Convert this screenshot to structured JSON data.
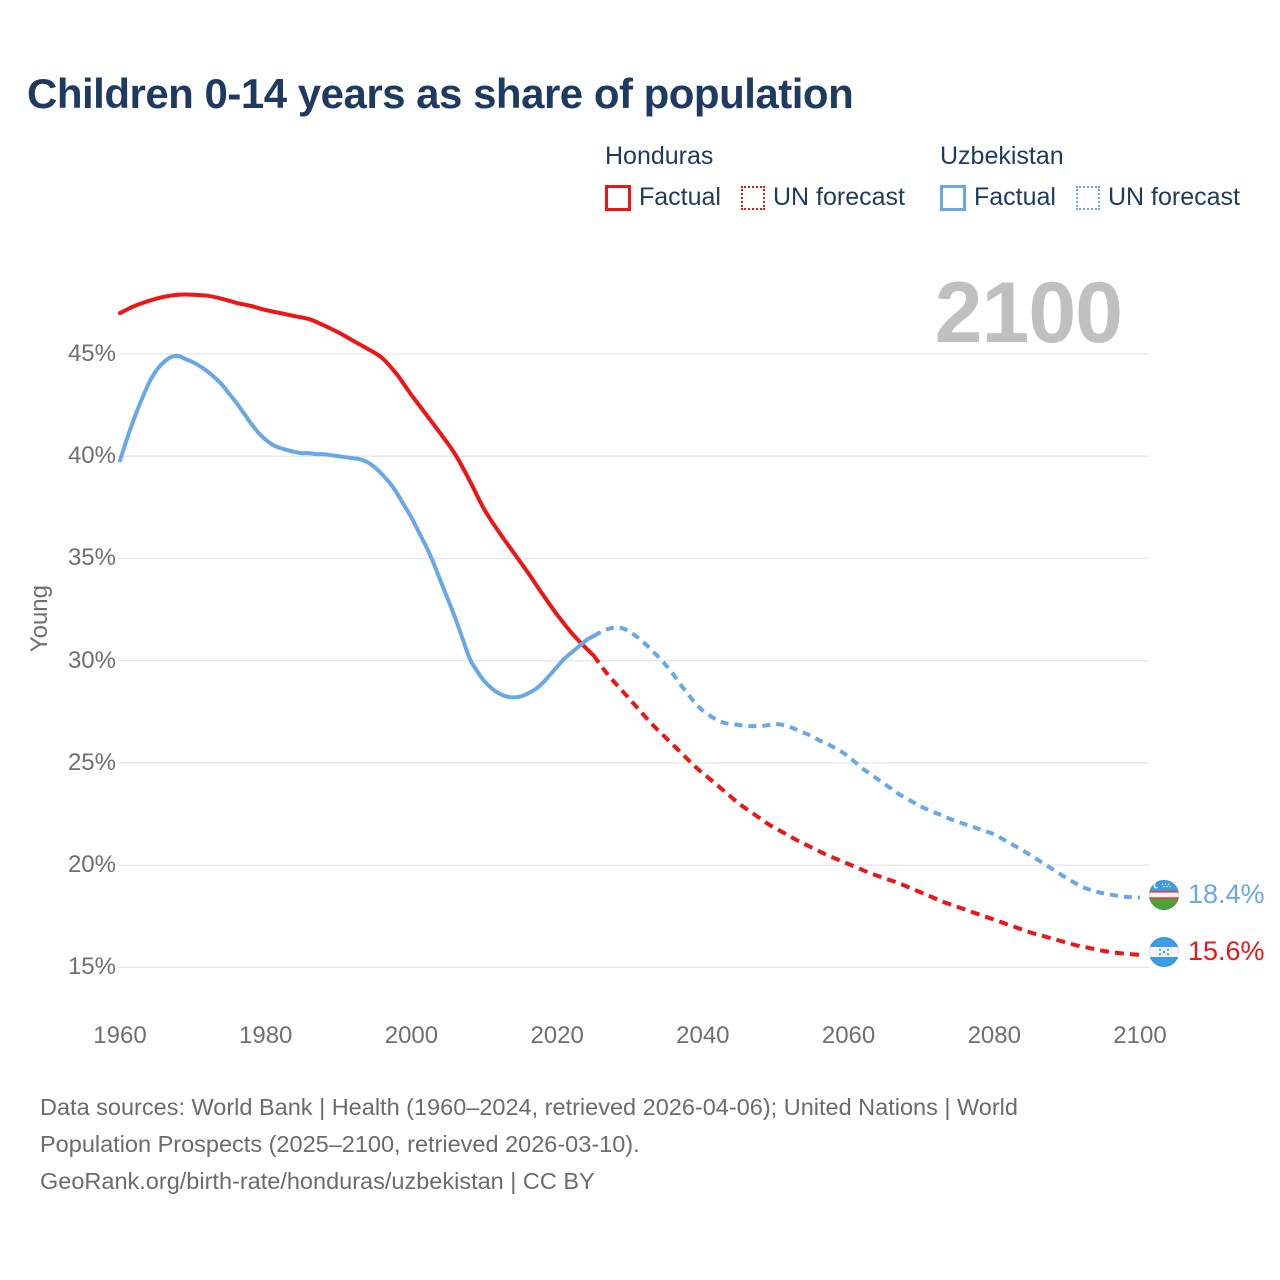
{
  "title": "Children 0-14 years as share of population",
  "legend": {
    "honduras": {
      "name": "Honduras",
      "factual_label": "Factual",
      "forecast_label": "UN forecast"
    },
    "uzbekistan": {
      "name": "Uzbekistan",
      "factual_label": "Factual",
      "forecast_label": "UN forecast"
    }
  },
  "watermark": "2100",
  "footer": {
    "line1": "Data sources: World Bank | Health (1960–2024, retrieved 2026-04-06); United Nations | World",
    "line2": "Population Prospects (2025–2100, retrieved 2026-03-10).",
    "line3": "GeoRank.org/birth-rate/honduras/uzbekistan | CC BY"
  },
  "colors": {
    "honduras": "#ee1515",
    "uzbekistan": "#68a8e6",
    "title_text": "#1e3a5f",
    "axis_text": "#6f6f6f",
    "gridline": "#e6e6e6",
    "watermark": "#c0c0c0",
    "footer_text": "#6b6b6b"
  },
  "chart_data": {
    "type": "line",
    "title": "Children 0-14 years as share of population",
    "xlabel": "",
    "ylabel": "Young",
    "grid": true,
    "legend_position": "top-right",
    "xlim": [
      1960,
      2100
    ],
    "ylim": [
      13.5,
      49
    ],
    "x_ticks": [
      1960,
      1980,
      2000,
      2020,
      2040,
      2060,
      2080,
      2100
    ],
    "y_ticks": [
      {
        "v": 15,
        "label": "15%"
      },
      {
        "v": 20,
        "label": "20%"
      },
      {
        "v": 25,
        "label": "25%"
      },
      {
        "v": 30,
        "label": "30%"
      },
      {
        "v": 35,
        "label": "35%"
      },
      {
        "v": 40,
        "label": "40%"
      },
      {
        "v": 45,
        "label": "45%"
      }
    ],
    "series": [
      {
        "name": "Honduras Factual",
        "color": "#ee1515",
        "style": "solid",
        "points": [
          [
            1960,
            47.0
          ],
          [
            1962,
            47.35
          ],
          [
            1964,
            47.6
          ],
          [
            1966,
            47.8
          ],
          [
            1968,
            47.9
          ],
          [
            1970,
            47.9
          ],
          [
            1972,
            47.85
          ],
          [
            1974,
            47.7
          ],
          [
            1976,
            47.5
          ],
          [
            1978,
            47.35
          ],
          [
            1980,
            47.15
          ],
          [
            1982,
            47.0
          ],
          [
            1984,
            46.85
          ],
          [
            1986,
            46.7
          ],
          [
            1988,
            46.4
          ],
          [
            1990,
            46.05
          ],
          [
            1992,
            45.65
          ],
          [
            1994,
            45.25
          ],
          [
            1996,
            44.8
          ],
          [
            1998,
            44.0
          ],
          [
            2000,
            43.0
          ],
          [
            2002,
            42.05
          ],
          [
            2004,
            41.1
          ],
          [
            2006,
            40.1
          ],
          [
            2008,
            38.8
          ],
          [
            2010,
            37.4
          ],
          [
            2012,
            36.3
          ],
          [
            2014,
            35.3
          ],
          [
            2016,
            34.3
          ],
          [
            2018,
            33.25
          ],
          [
            2020,
            32.25
          ],
          [
            2022,
            31.35
          ],
          [
            2024,
            30.6
          ],
          [
            2025,
            30.25
          ]
        ]
      },
      {
        "name": "Honduras UN forecast",
        "color": "#ee1515",
        "style": "dashed",
        "dash": "9 6",
        "points": [
          [
            2025,
            30.25
          ],
          [
            2027,
            29.3
          ],
          [
            2029,
            28.5
          ],
          [
            2031,
            27.7
          ],
          [
            2033,
            26.9
          ],
          [
            2035,
            26.2
          ],
          [
            2037,
            25.5
          ],
          [
            2039,
            24.8
          ],
          [
            2041,
            24.2
          ],
          [
            2043,
            23.6
          ],
          [
            2045,
            23.0
          ],
          [
            2047,
            22.5
          ],
          [
            2049,
            22.0
          ],
          [
            2051,
            21.6
          ],
          [
            2053,
            21.2
          ],
          [
            2055,
            20.85
          ],
          [
            2057,
            20.5
          ],
          [
            2059,
            20.2
          ],
          [
            2061,
            19.9
          ],
          [
            2063,
            19.6
          ],
          [
            2065,
            19.35
          ],
          [
            2067,
            19.1
          ],
          [
            2069,
            18.8
          ],
          [
            2071,
            18.5
          ],
          [
            2073,
            18.2
          ],
          [
            2075,
            17.95
          ],
          [
            2077,
            17.7
          ],
          [
            2079,
            17.45
          ],
          [
            2081,
            17.2
          ],
          [
            2083,
            16.95
          ],
          [
            2085,
            16.7
          ],
          [
            2087,
            16.5
          ],
          [
            2089,
            16.3
          ],
          [
            2091,
            16.1
          ],
          [
            2093,
            15.95
          ],
          [
            2095,
            15.8
          ],
          [
            2097,
            15.7
          ],
          [
            2100,
            15.6
          ]
        ]
      },
      {
        "name": "Uzbekistan Factual",
        "color": "#68a8e6",
        "style": "solid",
        "points": [
          [
            1960,
            39.8
          ],
          [
            1961,
            40.9
          ],
          [
            1962,
            41.9
          ],
          [
            1963,
            42.8
          ],
          [
            1964,
            43.6
          ],
          [
            1965,
            44.2
          ],
          [
            1966,
            44.6
          ],
          [
            1967,
            44.85
          ],
          [
            1968,
            44.9
          ],
          [
            1969,
            44.75
          ],
          [
            1970,
            44.6
          ],
          [
            1971,
            44.4
          ],
          [
            1972,
            44.15
          ],
          [
            1973,
            43.85
          ],
          [
            1974,
            43.5
          ],
          [
            1975,
            43.05
          ],
          [
            1976,
            42.6
          ],
          [
            1977,
            42.1
          ],
          [
            1978,
            41.6
          ],
          [
            1979,
            41.15
          ],
          [
            1980,
            40.8
          ],
          [
            1981,
            40.55
          ],
          [
            1982,
            40.4
          ],
          [
            1983,
            40.3
          ],
          [
            1984,
            40.2
          ],
          [
            1985,
            40.15
          ],
          [
            1986,
            40.15
          ],
          [
            1987,
            40.1
          ],
          [
            1988,
            40.1
          ],
          [
            1989,
            40.05
          ],
          [
            1990,
            40.0
          ],
          [
            1991,
            39.95
          ],
          [
            1992,
            39.9
          ],
          [
            1993,
            39.85
          ],
          [
            1994,
            39.7
          ],
          [
            1995,
            39.45
          ],
          [
            1996,
            39.1
          ],
          [
            1997,
            38.7
          ],
          [
            1998,
            38.2
          ],
          [
            1999,
            37.6
          ],
          [
            2000,
            37.0
          ],
          [
            2001,
            36.3
          ],
          [
            2002,
            35.6
          ],
          [
            2003,
            34.8
          ],
          [
            2004,
            33.9
          ],
          [
            2005,
            33.0
          ],
          [
            2006,
            32.1
          ],
          [
            2007,
            31.1
          ],
          [
            2008,
            30.1
          ],
          [
            2009,
            29.5
          ],
          [
            2010,
            29.0
          ],
          [
            2011,
            28.65
          ],
          [
            2012,
            28.4
          ],
          [
            2013,
            28.25
          ],
          [
            2014,
            28.2
          ],
          [
            2015,
            28.25
          ],
          [
            2016,
            28.4
          ],
          [
            2017,
            28.6
          ],
          [
            2018,
            28.9
          ],
          [
            2019,
            29.3
          ],
          [
            2020,
            29.7
          ],
          [
            2021,
            30.1
          ],
          [
            2022,
            30.4
          ],
          [
            2023,
            30.7
          ],
          [
            2024,
            31.0
          ],
          [
            2025,
            31.2
          ]
        ]
      },
      {
        "name": "Uzbekistan UN forecast",
        "color": "#68a8e6",
        "style": "dashed",
        "dash": "8 6",
        "points": [
          [
            2025,
            31.2
          ],
          [
            2026,
            31.4
          ],
          [
            2027,
            31.55
          ],
          [
            2028,
            31.62
          ],
          [
            2029,
            31.58
          ],
          [
            2030,
            31.4
          ],
          [
            2031,
            31.15
          ],
          [
            2032,
            30.85
          ],
          [
            2033,
            30.5
          ],
          [
            2034,
            30.15
          ],
          [
            2035,
            29.75
          ],
          [
            2036,
            29.3
          ],
          [
            2037,
            28.8
          ],
          [
            2038,
            28.35
          ],
          [
            2039,
            27.9
          ],
          [
            2040,
            27.55
          ],
          [
            2041,
            27.3
          ],
          [
            2042,
            27.1
          ],
          [
            2043,
            26.95
          ],
          [
            2044,
            26.9
          ],
          [
            2045,
            26.85
          ],
          [
            2046,
            26.8
          ],
          [
            2047,
            26.8
          ],
          [
            2048,
            26.8
          ],
          [
            2049,
            26.85
          ],
          [
            2050,
            26.9
          ],
          [
            2051,
            26.85
          ],
          [
            2052,
            26.75
          ],
          [
            2053,
            26.6
          ],
          [
            2054,
            26.45
          ],
          [
            2055,
            26.3
          ],
          [
            2056,
            26.1
          ],
          [
            2057,
            25.95
          ],
          [
            2058,
            25.75
          ],
          [
            2059,
            25.55
          ],
          [
            2060,
            25.3
          ],
          [
            2061,
            25.0
          ],
          [
            2062,
            24.7
          ],
          [
            2063,
            24.45
          ],
          [
            2064,
            24.2
          ],
          [
            2065,
            23.95
          ],
          [
            2066,
            23.7
          ],
          [
            2067,
            23.45
          ],
          [
            2068,
            23.25
          ],
          [
            2069,
            23.05
          ],
          [
            2070,
            22.85
          ],
          [
            2072,
            22.55
          ],
          [
            2074,
            22.25
          ],
          [
            2076,
            22.0
          ],
          [
            2078,
            21.75
          ],
          [
            2080,
            21.5
          ],
          [
            2082,
            21.1
          ],
          [
            2084,
            20.7
          ],
          [
            2086,
            20.25
          ],
          [
            2088,
            19.8
          ],
          [
            2090,
            19.35
          ],
          [
            2092,
            18.95
          ],
          [
            2094,
            18.7
          ],
          [
            2096,
            18.55
          ],
          [
            2098,
            18.45
          ],
          [
            2100,
            18.4
          ]
        ]
      }
    ],
    "end_labels": [
      {
        "country": "Uzbekistan",
        "value": "18.4%",
        "color": "#68a8e6",
        "flag": "uzbekistan"
      },
      {
        "country": "Honduras",
        "value": "15.6%",
        "color": "#ee1515",
        "flag": "honduras"
      }
    ],
    "forecast_start_year": 2025,
    "watermark": "2100"
  }
}
